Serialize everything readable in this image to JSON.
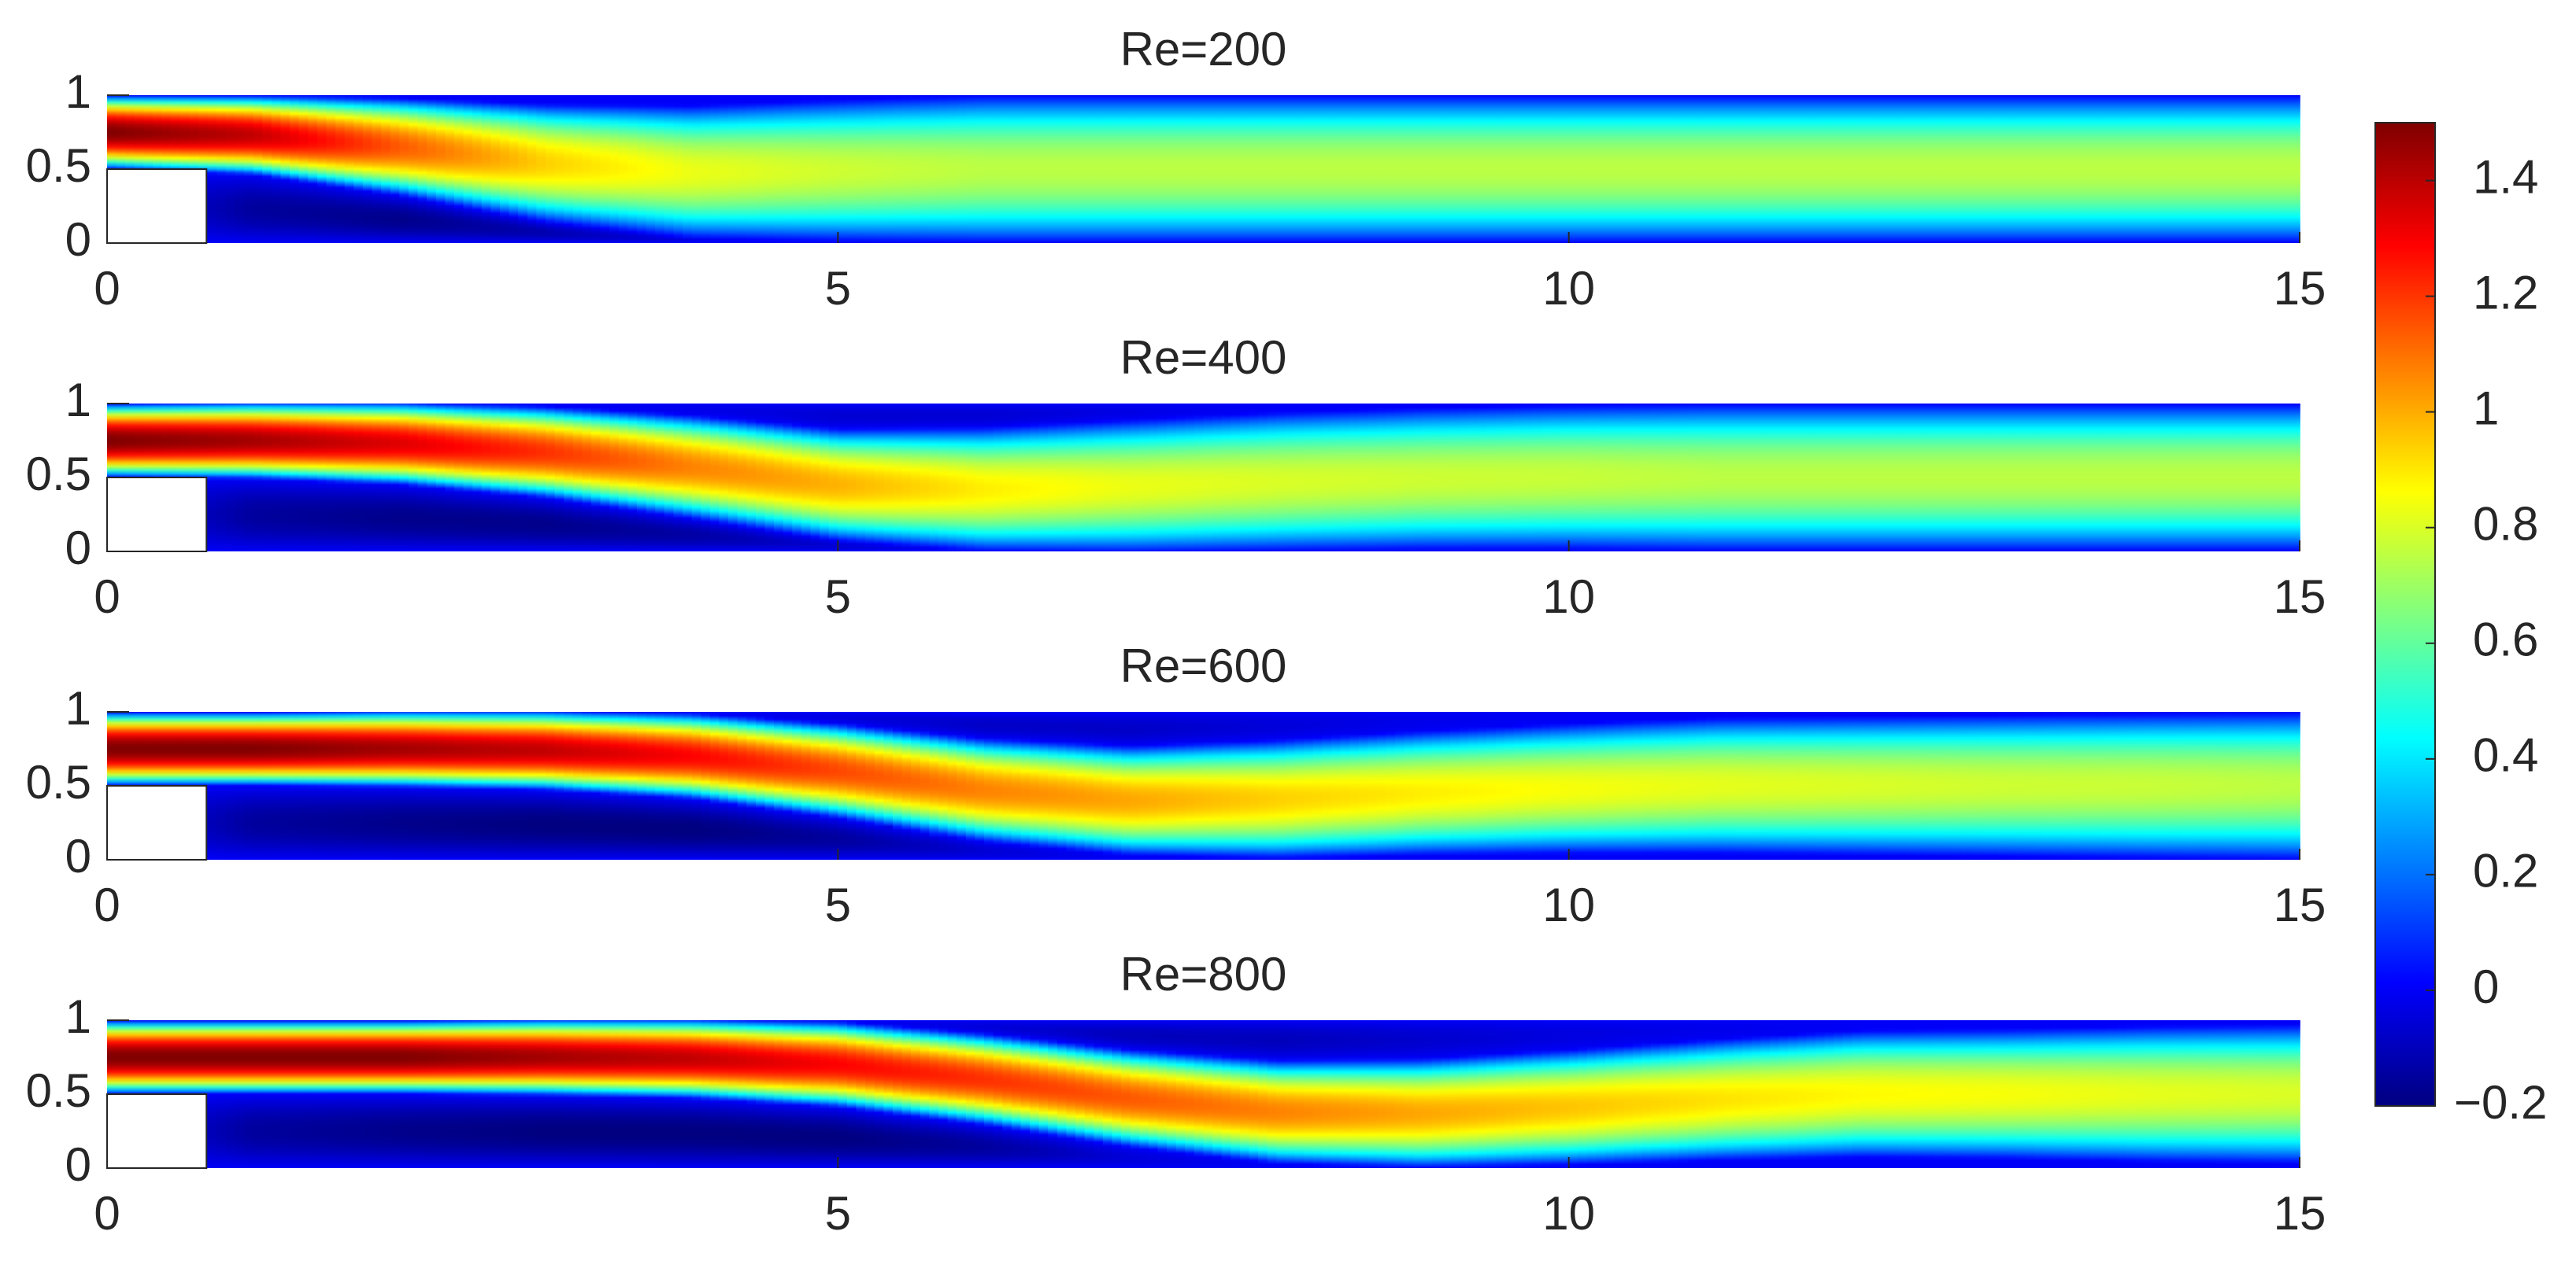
{
  "chart_data": [
    {
      "type": "heatmap",
      "title": "Re=200",
      "colormap": "jet",
      "xlim": [
        0,
        15
      ],
      "ylim": [
        0,
        1
      ],
      "xticks": [
        0,
        5,
        10,
        15
      ],
      "yticks": [
        0,
        0.5,
        1
      ],
      "x": [
        0,
        1,
        2,
        3,
        4,
        5,
        6,
        7,
        8,
        9,
        10,
        11,
        12,
        13,
        14,
        15
      ],
      "center": [
        0.75,
        0.73,
        0.65,
        0.54,
        0.48,
        0.49,
        0.5,
        0.5,
        0.5,
        0.5,
        0.5,
        0.5,
        0.5,
        0.5,
        0.5,
        0.5
      ],
      "halfwidth": [
        0.25,
        0.27,
        0.33,
        0.4,
        0.45,
        0.48,
        0.5,
        0.5,
        0.5,
        0.5,
        0.5,
        0.5,
        0.5,
        0.5,
        0.5,
        0.5
      ],
      "peak": [
        1.5,
        1.39,
        1.14,
        0.94,
        0.83,
        0.78,
        0.75,
        0.75,
        0.75,
        0.75,
        0.75,
        0.75,
        0.75,
        0.75,
        0.75,
        0.75
      ],
      "backflow_bottom": [
        0,
        0.15,
        0.18,
        0.12,
        0.04,
        0,
        0,
        0,
        0,
        0,
        0,
        0,
        0,
        0,
        0,
        0
      ],
      "backflow_top": [
        0,
        0,
        0,
        0,
        0,
        0,
        0,
        0,
        0,
        0,
        0,
        0,
        0,
        0,
        0,
        0
      ],
      "obstacle": {
        "x": [
          0,
          0.68
        ],
        "y": [
          0,
          0.5
        ]
      }
    },
    {
      "type": "heatmap",
      "title": "Re=400",
      "colormap": "jet",
      "xlim": [
        0,
        15
      ],
      "ylim": [
        0,
        1
      ],
      "xticks": [
        0,
        5,
        10,
        15
      ],
      "yticks": [
        0,
        0.5,
        1
      ],
      "x": [
        0,
        1,
        2,
        3,
        4,
        5,
        6,
        7,
        8,
        9,
        10,
        11,
        12,
        13,
        14,
        15
      ],
      "center": [
        0.75,
        0.75,
        0.73,
        0.67,
        0.57,
        0.45,
        0.42,
        0.44,
        0.47,
        0.49,
        0.5,
        0.5,
        0.5,
        0.5,
        0.5,
        0.5
      ],
      "halfwidth": [
        0.25,
        0.26,
        0.28,
        0.31,
        0.35,
        0.38,
        0.42,
        0.45,
        0.47,
        0.48,
        0.49,
        0.5,
        0.5,
        0.5,
        0.5,
        0.5
      ],
      "peak": [
        1.5,
        1.44,
        1.34,
        1.21,
        1.07,
        0.99,
        0.89,
        0.83,
        0.8,
        0.78,
        0.77,
        0.75,
        0.75,
        0.75,
        0.75,
        0.75
      ],
      "backflow_bottom": [
        0,
        0.15,
        0.18,
        0.18,
        0.14,
        0.06,
        0,
        0,
        0,
        0,
        0,
        0,
        0,
        0,
        0,
        0
      ],
      "backflow_top": [
        0,
        0,
        0,
        0,
        0.02,
        0.06,
        0.06,
        0.03,
        0,
        0,
        0,
        0,
        0,
        0,
        0,
        0
      ],
      "obstacle": {
        "x": [
          0,
          0.68
        ],
        "y": [
          0,
          0.5
        ]
      }
    },
    {
      "type": "heatmap",
      "title": "Re=600",
      "colormap": "jet",
      "xlim": [
        0,
        15
      ],
      "ylim": [
        0,
        1
      ],
      "xticks": [
        0,
        5,
        10,
        15
      ],
      "yticks": [
        0,
        0.5,
        1
      ],
      "x": [
        0,
        1,
        2,
        3,
        4,
        5,
        6,
        7,
        8,
        9,
        10,
        11,
        12,
        13,
        14,
        15
      ],
      "center": [
        0.75,
        0.75,
        0.75,
        0.74,
        0.7,
        0.6,
        0.47,
        0.4,
        0.41,
        0.45,
        0.48,
        0.5,
        0.5,
        0.5,
        0.5,
        0.5
      ],
      "halfwidth": [
        0.25,
        0.25,
        0.26,
        0.27,
        0.29,
        0.32,
        0.35,
        0.37,
        0.4,
        0.42,
        0.44,
        0.46,
        0.47,
        0.48,
        0.49,
        0.5
      ],
      "peak": [
        1.5,
        1.5,
        1.44,
        1.39,
        1.29,
        1.17,
        1.07,
        1.01,
        0.94,
        0.89,
        0.85,
        0.82,
        0.8,
        0.78,
        0.77,
        0.75
      ],
      "backflow_bottom": [
        0,
        0.15,
        0.18,
        0.2,
        0.2,
        0.15,
        0.06,
        0,
        0,
        0,
        0,
        0,
        0,
        0,
        0,
        0
      ],
      "backflow_top": [
        0,
        0,
        0,
        0,
        0,
        0.04,
        0.08,
        0.08,
        0.05,
        0.02,
        0,
        0,
        0,
        0,
        0,
        0
      ],
      "obstacle": {
        "x": [
          0,
          0.68
        ],
        "y": [
          0,
          0.5
        ]
      }
    },
    {
      "type": "heatmap",
      "title": "Re=800",
      "colormap": "jet",
      "xlim": [
        0,
        15
      ],
      "ylim": [
        0,
        1
      ],
      "xticks": [
        0,
        5,
        10,
        15
      ],
      "yticks": [
        0,
        0.5,
        1
      ],
      "x": [
        0,
        1,
        2,
        3,
        4,
        5,
        6,
        7,
        8,
        9,
        10,
        11,
        12,
        13,
        14,
        15
      ],
      "center": [
        0.75,
        0.75,
        0.75,
        0.75,
        0.74,
        0.7,
        0.6,
        0.47,
        0.38,
        0.37,
        0.41,
        0.46,
        0.5,
        0.5,
        0.5,
        0.5
      ],
      "halfwidth": [
        0.25,
        0.25,
        0.25,
        0.26,
        0.27,
        0.29,
        0.31,
        0.33,
        0.35,
        0.37,
        0.39,
        0.41,
        0.43,
        0.44,
        0.46,
        0.47
      ],
      "peak": [
        1.5,
        1.5,
        1.5,
        1.44,
        1.39,
        1.29,
        1.21,
        1.14,
        1.07,
        1.01,
        0.96,
        0.91,
        0.87,
        0.85,
        0.82,
        0.8
      ],
      "backflow_bottom": [
        0,
        0.15,
        0.18,
        0.2,
        0.2,
        0.2,
        0.15,
        0.05,
        0,
        0,
        0,
        0,
        0,
        0,
        0,
        0
      ],
      "backflow_top": [
        0,
        0,
        0,
        0,
        0,
        0,
        0.05,
        0.1,
        0.1,
        0.07,
        0.04,
        0.02,
        0,
        0,
        0,
        0
      ],
      "obstacle": {
        "x": [
          0,
          0.68
        ],
        "y": [
          0,
          0.5
        ]
      }
    }
  ],
  "colorbar": {
    "colormap": "jet",
    "clim": [
      -0.2,
      1.5
    ],
    "ticks": [
      {
        "value": -0.2,
        "label": "−0.2"
      },
      0,
      0.2,
      0.4,
      0.6,
      0.8,
      1,
      1.2,
      1.4
    ]
  }
}
